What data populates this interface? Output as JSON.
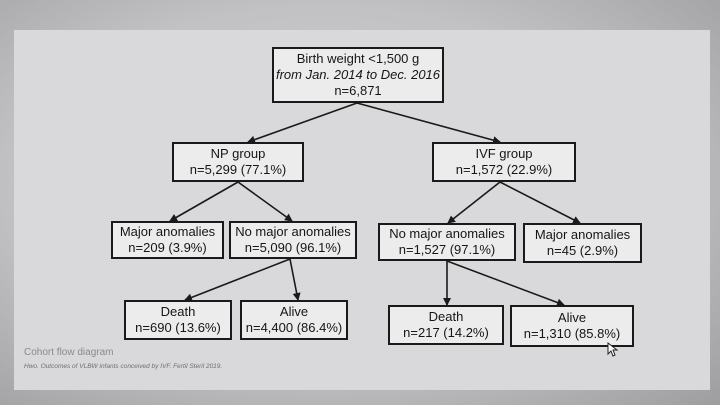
{
  "diagram": {
    "root": {
      "line1": "Birth weight <1,500 g",
      "line2": "from Jan. 2014 to  Dec. 2016",
      "line3": "n=6,871"
    },
    "np_group": {
      "label": "NP group",
      "count": "n=5,299 (77.1%)"
    },
    "ivf_group": {
      "label": "IVF group",
      "count": "n=1,572 (22.9%)"
    },
    "np_major": {
      "label": "Major anomalies",
      "count": "n=209 (3.9%)"
    },
    "np_no_major": {
      "label": "No major anomalies",
      "count": "n=5,090 (96.1%)"
    },
    "ivf_no_major": {
      "label": "No major anomalies",
      "count": "n=1,527 (97.1%)"
    },
    "ivf_major": {
      "label": "Major anomalies",
      "count": "n=45 (2.9%)"
    },
    "np_death": {
      "label": "Death",
      "count": "n=690 (13.6%)"
    },
    "np_alive": {
      "label": "Alive",
      "count": "n=4,400 (86.4%)"
    },
    "ivf_death": {
      "label": "Death",
      "count": "n=217 (14.2%)"
    },
    "ivf_alive": {
      "label": "Alive",
      "count": "n=1,310 (85.8%)"
    }
  },
  "caption": {
    "title": "Cohort flow diagram",
    "subtitle": "Hwo. Outcomes of VLBW infants conceived by IVF. Fertil Steril 2019."
  }
}
